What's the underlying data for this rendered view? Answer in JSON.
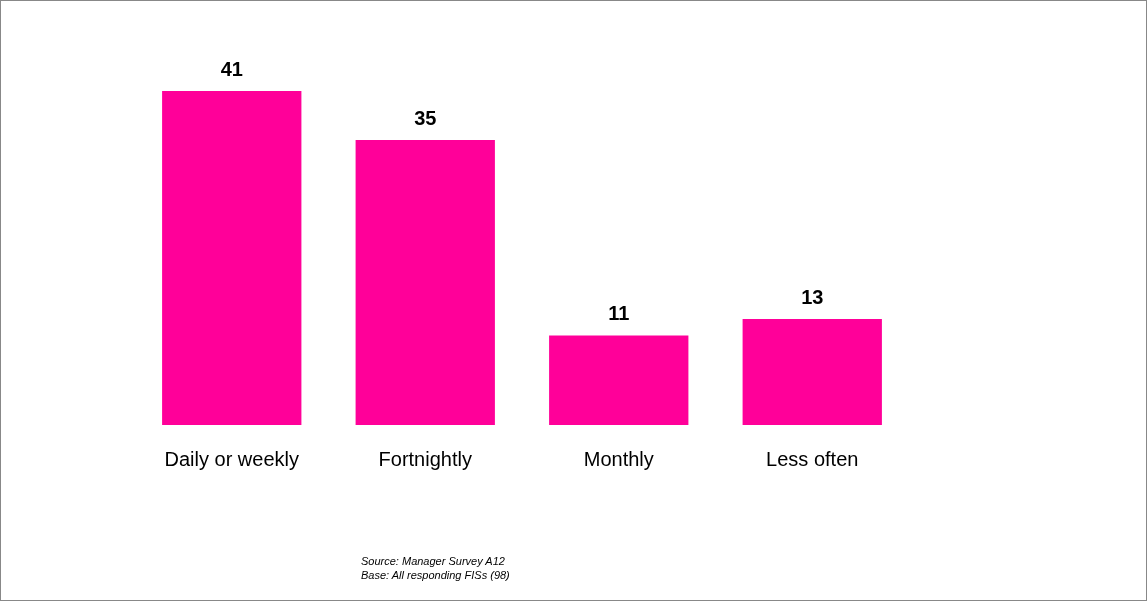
{
  "chart_data": {
    "type": "bar",
    "categories": [
      "Daily or weekly",
      "Fortnightly",
      "Monthly",
      "Less often"
    ],
    "values": [
      41,
      35,
      11,
      13
    ],
    "color": "#ff0099",
    "data_labels": true,
    "annotations": [
      "Source: Manager Survey A12",
      "Base: All responding FISs (98)"
    ]
  }
}
